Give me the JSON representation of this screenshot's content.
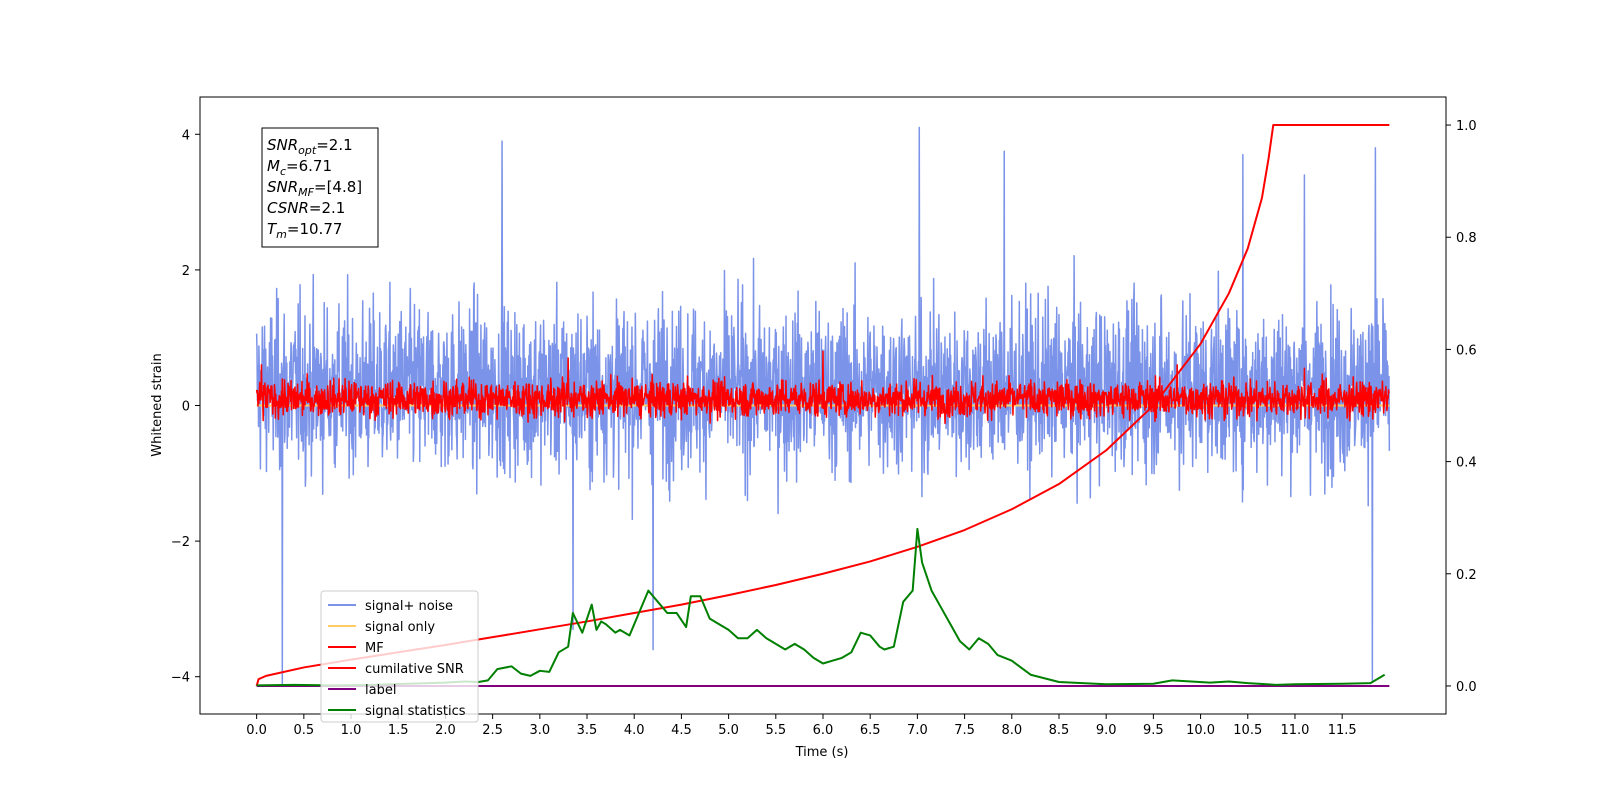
{
  "chart_data": {
    "type": "line",
    "title": "",
    "xlabel": "Time (s)",
    "ylabel": "Whitened strain",
    "y2label": "",
    "xlim": [
      -0.6,
      12.6
    ],
    "ylim": [
      -4.55,
      4.55
    ],
    "y2lim": [
      -0.05,
      1.05
    ],
    "x_ticks": [
      0.0,
      0.5,
      1.0,
      1.5,
      2.0,
      2.5,
      3.0,
      3.5,
      4.0,
      4.5,
      5.0,
      5.5,
      6.0,
      6.5,
      7.0,
      7.5,
      8.0,
      8.5,
      9.0,
      9.5,
      10.0,
      10.5,
      11.0,
      11.5
    ],
    "x_tick_labels": [
      "0.0",
      "0.5",
      "1.0",
      "1.5",
      "2.0",
      "2.5",
      "3.0",
      "3.5",
      "4.0",
      "4.5",
      "5.0",
      "5.5",
      "6.0",
      "6.5",
      "7.0",
      "7.5",
      "8.0",
      "8.5",
      "9.0",
      "9.5",
      "10.0",
      "10.5",
      "11.0",
      "11.5"
    ],
    "y_ticks": [
      -4,
      -2,
      0,
      2,
      4
    ],
    "y_tick_labels": [
      "−4",
      "−2",
      "0",
      "2",
      "4"
    ],
    "y2_ticks": [
      0.0,
      0.2,
      0.4,
      0.6,
      0.8,
      1.0
    ],
    "y2_tick_labels": [
      "0.0",
      "0.2",
      "0.4",
      "0.6",
      "0.8",
      "1.0"
    ],
    "grid": false,
    "legend_position": "lower-left",
    "annotation": [
      {
        "base": "SNR",
        "sub": "opt",
        "value": "=2.1"
      },
      {
        "base": "M",
        "sub": "c",
        "value": "=6.71"
      },
      {
        "base": "SNR",
        "sub": "MF",
        "value": "=[4.8]"
      },
      {
        "base": "CSNR",
        "sub": "",
        "value": "=2.1"
      },
      {
        "base": "T",
        "sub": "m",
        "value": "=10.77"
      }
    ],
    "series": [
      {
        "name": "signal+ noise",
        "color": "#7b93e8",
        "axis": "left",
        "kind": "noise",
        "x_range": [
          0.0,
          12.0
        ],
        "typical_range": [
          -1.8,
          2.3
        ],
        "extremes": [
          {
            "x": 0.27,
            "y": -4.1
          },
          {
            "x": 2.6,
            "y": 3.9
          },
          {
            "x": 3.35,
            "y": -3.3
          },
          {
            "x": 4.2,
            "y": -3.6
          },
          {
            "x": 7.02,
            "y": 4.1
          },
          {
            "x": 7.92,
            "y": 3.75
          },
          {
            "x": 10.45,
            "y": 3.7
          },
          {
            "x": 11.1,
            "y": 3.4
          },
          {
            "x": 11.82,
            "y": -4.05
          },
          {
            "x": 11.85,
            "y": 3.8
          }
        ]
      },
      {
        "name": "signal only",
        "color": "#ffcc66",
        "axis": "left",
        "kind": "line",
        "x": [
          0.0,
          12.0
        ],
        "y": [
          0.0,
          0.0
        ]
      },
      {
        "name": "MF",
        "color": "#ff0000",
        "axis": "left",
        "kind": "noise",
        "x_range": [
          0.0,
          12.0
        ],
        "typical_range": [
          -0.35,
          0.55
        ],
        "extremes": [
          {
            "x": 0.05,
            "y": 0.6
          },
          {
            "x": 3.3,
            "y": 0.7
          },
          {
            "x": 6.0,
            "y": 0.8
          },
          {
            "x": 9.75,
            "y": 0.6
          },
          {
            "x": 11.1,
            "y": 0.55
          }
        ]
      },
      {
        "name": "cumilative SNR",
        "color": "#ff0000",
        "axis": "right",
        "kind": "line",
        "x": [
          0.0,
          0.02,
          0.1,
          0.5,
          1.0,
          1.5,
          2.0,
          2.5,
          3.0,
          3.5,
          4.0,
          4.5,
          5.0,
          5.5,
          6.0,
          6.5,
          7.0,
          7.5,
          8.0,
          8.5,
          9.0,
          9.5,
          10.0,
          10.3,
          10.5,
          10.65,
          10.72,
          10.77,
          12.0
        ],
        "y": [
          0.0,
          0.012,
          0.018,
          0.033,
          0.047,
          0.06,
          0.073,
          0.087,
          0.101,
          0.115,
          0.13,
          0.145,
          0.162,
          0.18,
          0.2,
          0.222,
          0.248,
          0.278,
          0.315,
          0.36,
          0.42,
          0.5,
          0.61,
          0.7,
          0.78,
          0.87,
          0.94,
          1.0,
          1.0
        ]
      },
      {
        "name": "label",
        "color": "#800080",
        "axis": "right",
        "kind": "line",
        "x": [
          0.0,
          12.0
        ],
        "y": [
          0.0,
          0.0
        ]
      },
      {
        "name": "signal statistics",
        "color": "#008000",
        "axis": "right",
        "kind": "line",
        "x": [
          0.0,
          0.4,
          0.8,
          1.2,
          1.6,
          2.0,
          2.2,
          2.35,
          2.45,
          2.55,
          2.7,
          2.8,
          2.9,
          3.0,
          3.1,
          3.2,
          3.3,
          3.35,
          3.45,
          3.55,
          3.6,
          3.65,
          3.7,
          3.8,
          3.85,
          3.95,
          4.05,
          4.15,
          4.25,
          4.35,
          4.45,
          4.55,
          4.6,
          4.7,
          4.8,
          4.9,
          5.0,
          5.1,
          5.2,
          5.3,
          5.4,
          5.5,
          5.6,
          5.7,
          5.8,
          5.9,
          6.0,
          6.1,
          6.2,
          6.3,
          6.4,
          6.5,
          6.6,
          6.65,
          6.75,
          6.85,
          6.95,
          7.0,
          7.05,
          7.15,
          7.25,
          7.35,
          7.45,
          7.55,
          7.65,
          7.75,
          7.85,
          8.0,
          8.2,
          8.5,
          9.0,
          9.5,
          9.7,
          9.9,
          10.1,
          10.3,
          10.5,
          10.8,
          11.0,
          11.5,
          11.8,
          11.95
        ],
        "y": [
          0.001,
          0.002,
          0.001,
          0.002,
          0.004,
          0.006,
          0.008,
          0.007,
          0.01,
          0.03,
          0.035,
          0.022,
          0.018,
          0.027,
          0.025,
          0.06,
          0.07,
          0.13,
          0.095,
          0.145,
          0.1,
          0.115,
          0.11,
          0.095,
          0.1,
          0.09,
          0.13,
          0.17,
          0.15,
          0.13,
          0.13,
          0.105,
          0.16,
          0.16,
          0.12,
          0.11,
          0.1,
          0.085,
          0.085,
          0.1,
          0.085,
          0.075,
          0.065,
          0.075,
          0.065,
          0.05,
          0.04,
          0.045,
          0.05,
          0.06,
          0.095,
          0.09,
          0.07,
          0.065,
          0.07,
          0.15,
          0.17,
          0.28,
          0.22,
          0.17,
          0.14,
          0.11,
          0.08,
          0.065,
          0.085,
          0.075,
          0.055,
          0.045,
          0.02,
          0.007,
          0.003,
          0.004,
          0.01,
          0.008,
          0.006,
          0.008,
          0.005,
          0.002,
          0.003,
          0.004,
          0.005,
          0.02
        ]
      }
    ]
  }
}
